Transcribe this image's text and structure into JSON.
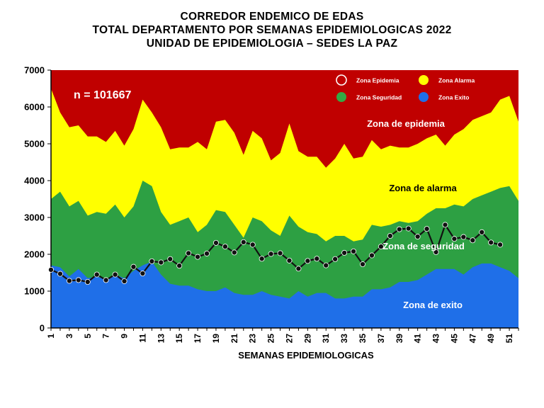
{
  "chart_data": {
    "type": "area",
    "title": [
      "CORREDOR ENDEMICO DE EDAS",
      "TOTAL DEPARTAMENTO POR SEMANAS EPIDEMIOLOGICAS 2022",
      "UNIDAD DE EPIDEMIOLOGIA – SEDES LA PAZ"
    ],
    "xlabel": "SEMANAS EPIDEMIOLOGICAS",
    "ylabel": "",
    "ylim": [
      0,
      7000
    ],
    "yticks": [
      0,
      1000,
      2000,
      3000,
      4000,
      5000,
      6000,
      7000
    ],
    "xlim": [
      1,
      52
    ],
    "xtick_labels": [
      "1",
      "3",
      "5",
      "7",
      "9",
      "11",
      "13",
      "15",
      "17",
      "19",
      "21",
      "23",
      "25",
      "27",
      "29",
      "31",
      "33",
      "35",
      "37",
      "39",
      "41",
      "43",
      "45",
      "47",
      "49",
      "51"
    ],
    "x": [
      1,
      2,
      3,
      4,
      5,
      6,
      7,
      8,
      9,
      10,
      11,
      12,
      13,
      14,
      15,
      16,
      17,
      18,
      19,
      20,
      21,
      22,
      23,
      24,
      25,
      26,
      27,
      28,
      29,
      30,
      31,
      32,
      33,
      34,
      35,
      36,
      37,
      38,
      39,
      40,
      41,
      42,
      43,
      44,
      45,
      46,
      47,
      48,
      49,
      50,
      51,
      52
    ],
    "grid": false,
    "legend_position": "top-right",
    "annotation_n": "n =  101667",
    "zone_labels": {
      "epidemia": "Zona de epidemia",
      "alarma": "Zona de alarma",
      "seguridad": "Zona de  seguridad",
      "exito": "Zona de exito"
    },
    "legend": [
      {
        "name": "Zona Epidemia",
        "color": "#c00000"
      },
      {
        "name": "Zona Alarma",
        "color": "#ffff00"
      },
      {
        "name": "Zona Seguridad",
        "color": "#33aa44"
      },
      {
        "name": "Zona Exito",
        "color": "#1f6fe8"
      }
    ],
    "colors": {
      "epidemia": "#c00000",
      "alarma": "#ffff00",
      "seguridad": "#2da043",
      "exito": "#1f6fe8",
      "cases_line": "#111111"
    },
    "series": [
      {
        "name": "Zona Exito",
        "values": [
          1700,
          1650,
          1400,
          1600,
          1350,
          1400,
          1300,
          1450,
          1350,
          1550,
          1700,
          1800,
          1450,
          1200,
          1150,
          1150,
          1050,
          1000,
          1000,
          1100,
          950,
          900,
          900,
          1000,
          900,
          850,
          800,
          1000,
          850,
          950,
          950,
          800,
          800,
          850,
          850,
          1050,
          1050,
          1100,
          1250,
          1250,
          1300,
          1450,
          1600,
          1600,
          1600,
          1450,
          1650,
          1750,
          1750,
          1650,
          1550,
          1350
        ]
      },
      {
        "name": "Zona Seguridad",
        "values": [
          3500,
          3700,
          3300,
          3450,
          3050,
          3150,
          3100,
          3350,
          3000,
          3300,
          4000,
          3850,
          3150,
          2800,
          2900,
          3000,
          2600,
          2800,
          3200,
          3150,
          2800,
          2450,
          3000,
          2900,
          2650,
          2500,
          3050,
          2750,
          2600,
          2550,
          2350,
          2500,
          2500,
          2350,
          2400,
          2800,
          2750,
          2800,
          2900,
          2850,
          2900,
          3100,
          3250,
          3250,
          3350,
          3300,
          3500,
          3600,
          3700,
          3800,
          3850,
          3450
        ]
      },
      {
        "name": "Zona Alarma",
        "values": [
          6500,
          5850,
          5450,
          5500,
          5200,
          5200,
          5050,
          5350,
          4950,
          5400,
          6200,
          5850,
          5450,
          4850,
          4900,
          4900,
          5050,
          4850,
          5600,
          5650,
          5300,
          4700,
          5350,
          5150,
          4550,
          4750,
          5550,
          4800,
          4650,
          4650,
          4350,
          4600,
          5000,
          4600,
          4650,
          5100,
          4850,
          4950,
          4900,
          4900,
          5000,
          5150,
          5250,
          4950,
          5250,
          5400,
          5650,
          5750,
          5850,
          6200,
          6300,
          5600
        ]
      },
      {
        "name": "Zona Epidemia",
        "values": [
          7000,
          7000,
          7000,
          7000,
          7000,
          7000,
          7000,
          7000,
          7000,
          7000,
          7000,
          7000,
          7000,
          7000,
          7000,
          7000,
          7000,
          7000,
          7000,
          7000,
          7000,
          7000,
          7000,
          7000,
          7000,
          7000,
          7000,
          7000,
          7000,
          7000,
          7000,
          7000,
          7000,
          7000,
          7000,
          7000,
          7000,
          7000,
          7000,
          7000,
          7000,
          7000,
          7000,
          7000,
          7000,
          7000,
          7000,
          7000,
          7000,
          7000,
          7000,
          7000
        ]
      },
      {
        "name": "Casos 2022",
        "values": [
          1580,
          1470,
          1280,
          1300,
          1250,
          1450,
          1300,
          1450,
          1270,
          1660,
          1480,
          1810,
          1780,
          1870,
          1690,
          2030,
          1930,
          2020,
          2310,
          2210,
          2050,
          2330,
          2260,
          1880,
          2010,
          2030,
          1830,
          1610,
          1820,
          1880,
          1700,
          1870,
          2040,
          2080,
          1730,
          1970,
          2210,
          2500,
          2680,
          2700,
          2480,
          2690,
          2060,
          2800,
          2420,
          2470,
          2380,
          2600,
          2320,
          2260,
          null,
          null
        ]
      }
    ]
  }
}
